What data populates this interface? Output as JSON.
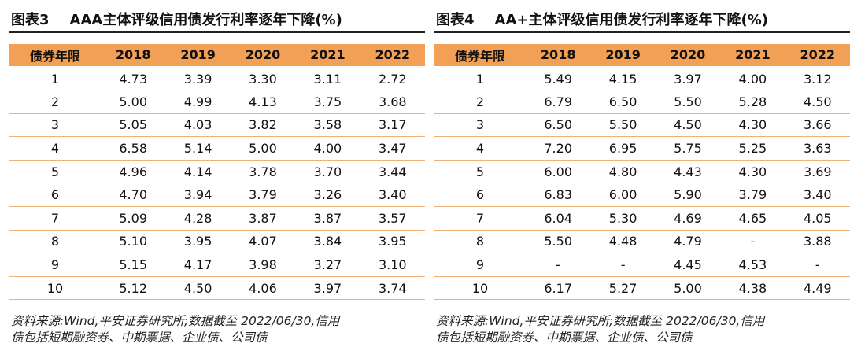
{
  "left": {
    "label": "图表3",
    "title": "AAA主体评级信用债发行利率逐年下降(%)",
    "headers": [
      "债券年限",
      "2018",
      "2019",
      "2020",
      "2021",
      "2022"
    ],
    "rows": [
      [
        "1",
        "4.73",
        "3.39",
        "3.30",
        "3.11",
        "2.72"
      ],
      [
        "2",
        "5.00",
        "4.99",
        "4.13",
        "3.75",
        "3.68"
      ],
      [
        "3",
        "5.05",
        "4.03",
        "3.82",
        "3.58",
        "3.17"
      ],
      [
        "4",
        "6.58",
        "5.14",
        "5.00",
        "4.00",
        "3.47"
      ],
      [
        "5",
        "4.96",
        "4.14",
        "3.78",
        "3.70",
        "3.44"
      ],
      [
        "6",
        "4.70",
        "3.94",
        "3.79",
        "3.26",
        "3.40"
      ],
      [
        "7",
        "5.09",
        "4.28",
        "3.87",
        "3.87",
        "3.57"
      ],
      [
        "8",
        "5.10",
        "3.95",
        "4.07",
        "3.84",
        "3.95"
      ],
      [
        "9",
        "5.15",
        "4.17",
        "3.98",
        "3.27",
        "3.10"
      ],
      [
        "10",
        "5.12",
        "4.50",
        "4.06",
        "3.97",
        "3.74"
      ]
    ],
    "source_line1": "资料来源:Wind,平安证券研究所;数据截至 2022/06/30,信用",
    "source_line2": "债包括短期融资券、中期票据、企业债、公司债"
  },
  "right": {
    "label": "图表4",
    "title": "AA+主体评级信用债发行利率逐年下降(%)",
    "headers": [
      "债券年限",
      "2018",
      "2019",
      "2020",
      "2021",
      "2022"
    ],
    "rows": [
      [
        "1",
        "5.49",
        "4.15",
        "3.97",
        "4.00",
        "3.12"
      ],
      [
        "2",
        "6.79",
        "6.50",
        "5.50",
        "5.28",
        "4.50"
      ],
      [
        "3",
        "6.50",
        "5.50",
        "4.50",
        "4.30",
        "3.66"
      ],
      [
        "4",
        "7.20",
        "6.95",
        "5.75",
        "5.25",
        "3.63"
      ],
      [
        "5",
        "6.00",
        "4.80",
        "4.43",
        "4.30",
        "3.69"
      ],
      [
        "6",
        "6.83",
        "6.00",
        "5.90",
        "3.79",
        "3.40"
      ],
      [
        "7",
        "6.04",
        "5.30",
        "4.69",
        "4.65",
        "4.05"
      ],
      [
        "8",
        "5.50",
        "4.48",
        "4.79",
        "-",
        "3.88"
      ],
      [
        "9",
        "-",
        "-",
        "4.45",
        "4.53",
        "-"
      ],
      [
        "10",
        "6.17",
        "5.27",
        "5.00",
        "4.38",
        "4.49"
      ]
    ],
    "source_line1": "资料来源:Wind,平安证券研究所;数据截至 2022/06/30,信用",
    "source_line2": "债包括短期融资券、中期票据、企业债、公司债"
  },
  "colors": {
    "header_fill": "#f2a056",
    "row_rule": "#f1b078"
  }
}
